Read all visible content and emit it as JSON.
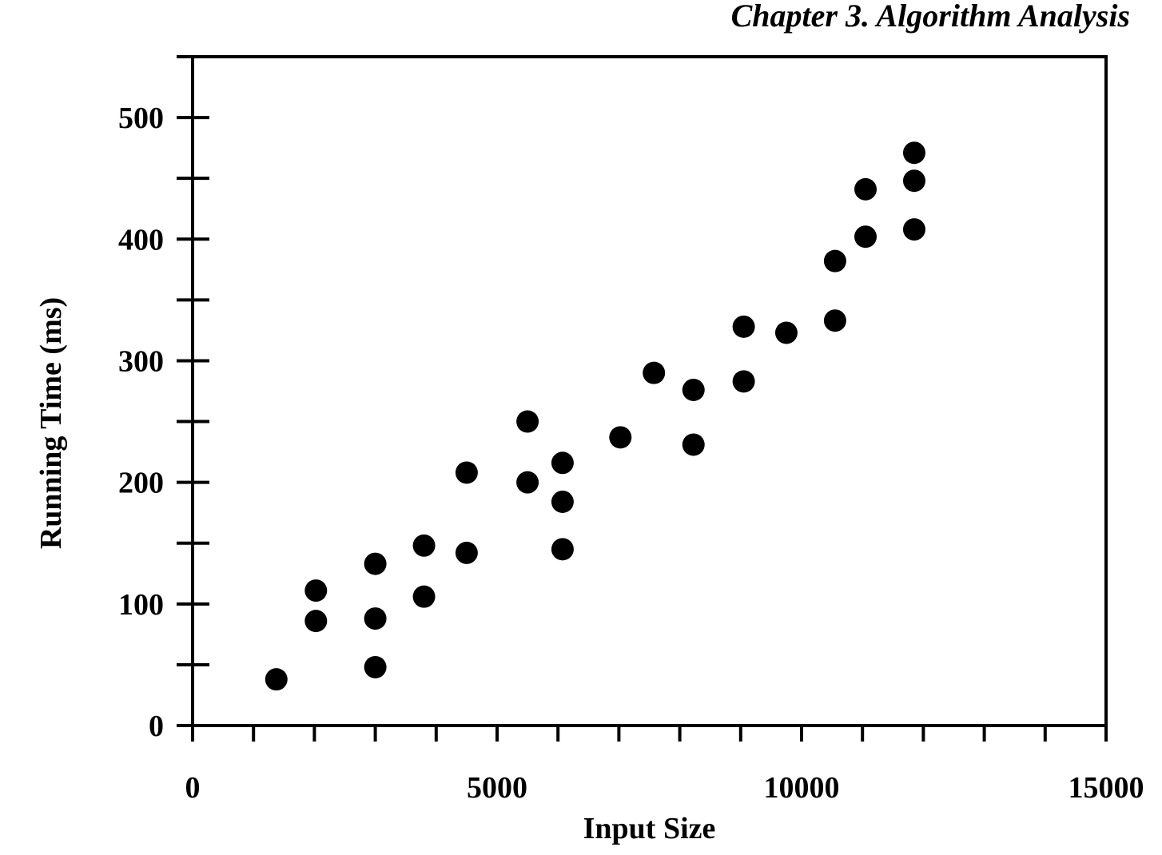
{
  "page": {
    "running_header": "Chapter 3.  Algorithm Analysis"
  },
  "chart_data": {
    "type": "scatter",
    "title": "",
    "xlabel": "Input Size",
    "ylabel": "Running Time (ms)",
    "xlim": [
      0,
      15000
    ],
    "ylim": [
      0,
      550
    ],
    "x_ticks": [
      0,
      5000,
      10000,
      15000
    ],
    "x_minor_step": 1000,
    "y_ticks": [
      0,
      100,
      200,
      300,
      400,
      500
    ],
    "y_minor_step": 50,
    "grid": false,
    "legend": "none",
    "marker_color": "#000000",
    "points": [
      {
        "x": 1375,
        "y": 38
      },
      {
        "x": 2025,
        "y": 111
      },
      {
        "x": 2025,
        "y": 86
      },
      {
        "x": 3000,
        "y": 133
      },
      {
        "x": 3000,
        "y": 88
      },
      {
        "x": 3000,
        "y": 48
      },
      {
        "x": 3800,
        "y": 148
      },
      {
        "x": 3800,
        "y": 106
      },
      {
        "x": 4500,
        "y": 208
      },
      {
        "x": 4500,
        "y": 142
      },
      {
        "x": 5500,
        "y": 250
      },
      {
        "x": 5500,
        "y": 200
      },
      {
        "x": 6075,
        "y": 216
      },
      {
        "x": 6075,
        "y": 184
      },
      {
        "x": 6075,
        "y": 145
      },
      {
        "x": 7025,
        "y": 237
      },
      {
        "x": 7575,
        "y": 290
      },
      {
        "x": 8225,
        "y": 276
      },
      {
        "x": 8225,
        "y": 231
      },
      {
        "x": 9050,
        "y": 328
      },
      {
        "x": 9050,
        "y": 283
      },
      {
        "x": 9750,
        "y": 323
      },
      {
        "x": 10550,
        "y": 382
      },
      {
        "x": 10550,
        "y": 333
      },
      {
        "x": 11050,
        "y": 441
      },
      {
        "x": 11050,
        "y": 402
      },
      {
        "x": 11850,
        "y": 471
      },
      {
        "x": 11850,
        "y": 448
      },
      {
        "x": 11850,
        "y": 408
      }
    ]
  }
}
